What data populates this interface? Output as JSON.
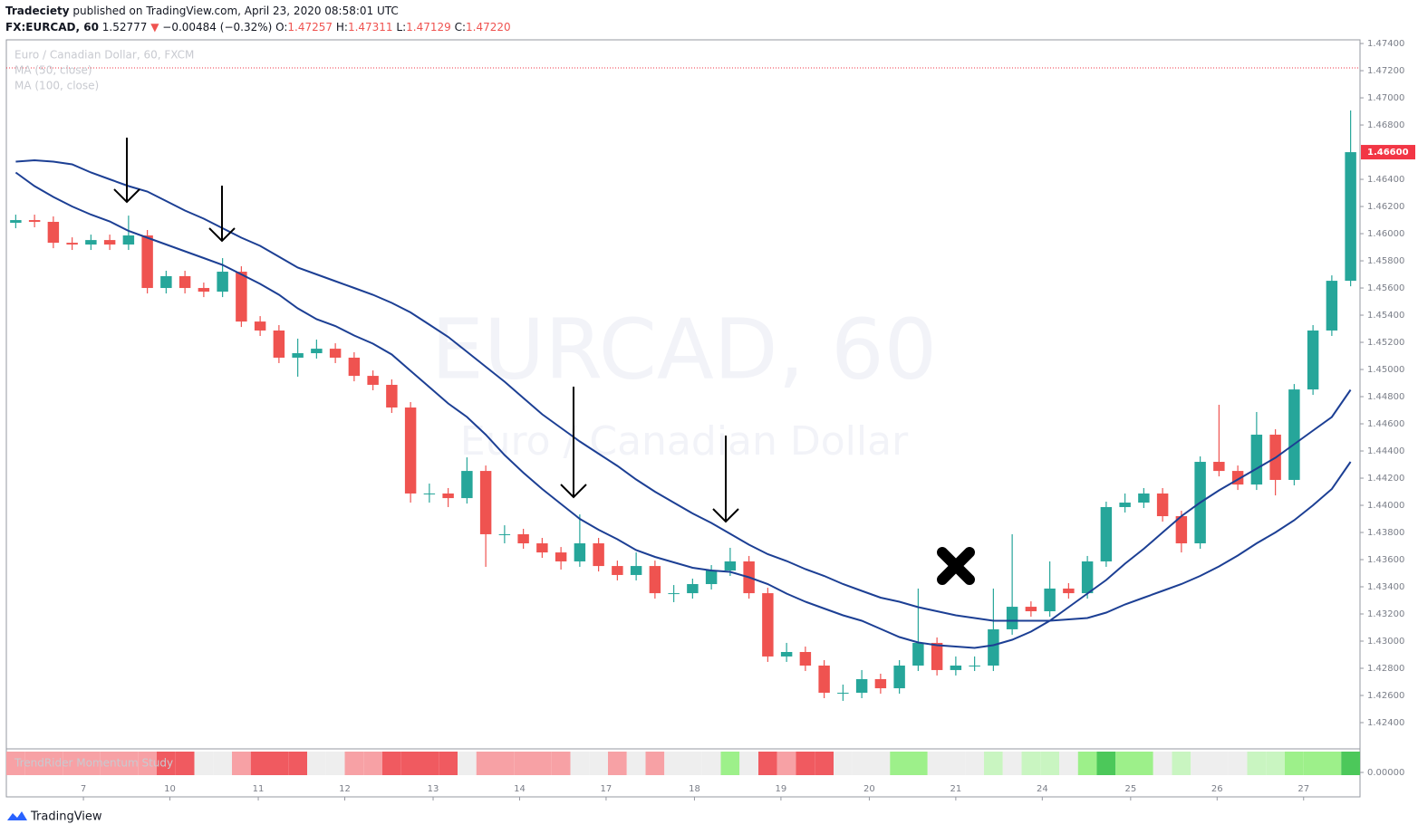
{
  "header": {
    "author": "Tradeciety",
    "published": "published on TradingView.com, April 23, 2020 08:58:01 UTC",
    "symbol": "FX:EURCAD, 60",
    "price": "1.52777",
    "arrow": "▼",
    "change": "−0.00484 (−0.32%)",
    "open_label": "O:",
    "open": "1.47257",
    "high_label": "H:",
    "high": "1.47311",
    "low_label": "L:",
    "low": "1.47129",
    "close_label": "C:",
    "close": "1.47220"
  },
  "legend": {
    "instrument": "Euro / Canadian Dollar, 60, FXCM",
    "ma_fast": "MA (50, close)",
    "ma_slow": "MA (100, close)"
  },
  "watermark": {
    "symbol": "EURCAD, 60",
    "description": "Euro / Canadian Dollar"
  },
  "footer": {
    "brand": "TradingView"
  },
  "chart_data": {
    "type": "candlestick",
    "up_color": "#26a69a",
    "down_color": "#ef5350",
    "grid": false,
    "xlim": [
      -0.5,
      71.5
    ],
    "xticks": [
      {
        "value": 3.6,
        "label": "7"
      },
      {
        "value": 8.2,
        "label": "10"
      },
      {
        "value": 12.9,
        "label": "11"
      },
      {
        "value": 17.5,
        "label": "12"
      },
      {
        "value": 22.2,
        "label": "13"
      },
      {
        "value": 26.8,
        "label": "14"
      },
      {
        "value": 31.4,
        "label": "17"
      },
      {
        "value": 36.1,
        "label": "18"
      },
      {
        "value": 40.7,
        "label": "19"
      },
      {
        "value": 45.4,
        "label": "20"
      },
      {
        "value": 50,
        "label": "21"
      },
      {
        "value": 54.6,
        "label": "24"
      },
      {
        "value": 59.3,
        "label": "25"
      },
      {
        "value": 63.9,
        "label": "26"
      },
      {
        "value": 68.5,
        "label": "27"
      }
    ],
    "ylim": [
      1.4222,
      1.47427
    ],
    "yticks": [
      {
        "value": 1.474,
        "label": "1.47400"
      },
      {
        "value": 1.472,
        "label": "1.47200"
      },
      {
        "value": 1.47,
        "label": "1.47000"
      },
      {
        "value": 1.468,
        "label": "1.46800"
      },
      {
        "value": 1.464,
        "label": "1.46400"
      },
      {
        "value": 1.462,
        "label": "1.46200"
      },
      {
        "value": 1.46,
        "label": "1.46000"
      },
      {
        "value": 1.458,
        "label": "1.45800"
      },
      {
        "value": 1.456,
        "label": "1.45600"
      },
      {
        "value": 1.454,
        "label": "1.45400"
      },
      {
        "value": 1.452,
        "label": "1.45200"
      },
      {
        "value": 1.45,
        "label": "1.45000"
      },
      {
        "value": 1.448,
        "label": "1.44800"
      },
      {
        "value": 1.446,
        "label": "1.44600"
      },
      {
        "value": 1.444,
        "label": "1.44400"
      },
      {
        "value": 1.442,
        "label": "1.44200"
      },
      {
        "value": 1.44,
        "label": "1.44000"
      },
      {
        "value": 1.438,
        "label": "1.43800"
      },
      {
        "value": 1.436,
        "label": "1.43600"
      },
      {
        "value": 1.434,
        "label": "1.43400"
      },
      {
        "value": 1.432,
        "label": "1.43200"
      },
      {
        "value": 1.43,
        "label": "1.43000"
      },
      {
        "value": 1.428,
        "label": "1.42800"
      },
      {
        "value": 1.426,
        "label": "1.42600"
      },
      {
        "value": 1.424,
        "label": "1.42400"
      }
    ],
    "last_price": {
      "value": 1.466,
      "label": "1.46600",
      "color": "#f23645"
    },
    "price_line": {
      "value": 1.4722,
      "color": "#f23645"
    },
    "ohlc": [
      [
        1.4608,
        1.4614,
        1.4604,
        1.461
      ],
      [
        1.461,
        1.4614,
        1.46047,
        1.46087
      ],
      [
        1.46087,
        1.46127,
        1.45893,
        1.45933
      ],
      [
        1.45933,
        1.45973,
        1.4588,
        1.4592
      ],
      [
        1.4592,
        1.45993,
        1.4588,
        1.45953
      ],
      [
        1.45953,
        1.45993,
        1.4588,
        1.4592
      ],
      [
        1.4592,
        1.46133,
        1.4588,
        1.45987
      ],
      [
        1.45987,
        1.46027,
        1.4556,
        1.456
      ],
      [
        1.456,
        1.45727,
        1.4556,
        1.45687
      ],
      [
        1.45687,
        1.45727,
        1.4556,
        1.456
      ],
      [
        1.456,
        1.4564,
        1.45533,
        1.45573
      ],
      [
        1.45573,
        1.4582,
        1.45533,
        1.4572
      ],
      [
        1.4572,
        1.4576,
        1.45313,
        1.45353
      ],
      [
        1.45353,
        1.45393,
        1.45247,
        1.45287
      ],
      [
        1.45287,
        1.45327,
        1.45047,
        1.45087
      ],
      [
        1.45087,
        1.45227,
        1.44947,
        1.4512
      ],
      [
        1.4512,
        1.4522,
        1.4508,
        1.45153
      ],
      [
        1.45153,
        1.45193,
        1.45047,
        1.45087
      ],
      [
        1.45087,
        1.45127,
        1.44913,
        1.44953
      ],
      [
        1.44953,
        1.44993,
        1.44847,
        1.44887
      ],
      [
        1.44887,
        1.44927,
        1.4468,
        1.4472
      ],
      [
        1.4472,
        1.4476,
        1.4402,
        1.44087
      ],
      [
        1.44087,
        1.4416,
        1.4402,
        1.44087
      ],
      [
        1.44087,
        1.44127,
        1.43987,
        1.44053
      ],
      [
        1.44053,
        1.44353,
        1.44013,
        1.44253
      ],
      [
        1.44253,
        1.44293,
        1.43547,
        1.43787
      ],
      [
        1.43787,
        1.43853,
        1.4372,
        1.43787
      ],
      [
        1.43787,
        1.43827,
        1.4368,
        1.4372
      ],
      [
        1.4372,
        1.4376,
        1.43613,
        1.43653
      ],
      [
        1.43653,
        1.43693,
        1.43527,
        1.43587
      ],
      [
        1.43587,
        1.43933,
        1.43547,
        1.4372
      ],
      [
        1.4372,
        1.4376,
        1.43513,
        1.43553
      ],
      [
        1.43553,
        1.43593,
        1.43447,
        1.43487
      ],
      [
        1.43487,
        1.43653,
        1.43447,
        1.43553
      ],
      [
        1.43553,
        1.43593,
        1.43313,
        1.43353
      ],
      [
        1.43353,
        1.43413,
        1.43287,
        1.43353
      ],
      [
        1.43353,
        1.4346,
        1.43313,
        1.4342
      ],
      [
        1.4342,
        1.4356,
        1.4338,
        1.4352
      ],
      [
        1.4352,
        1.43687,
        1.4348,
        1.43587
      ],
      [
        1.43587,
        1.43627,
        1.43313,
        1.43353
      ],
      [
        1.43353,
        1.43393,
        1.42847,
        1.42887
      ],
      [
        1.42887,
        1.42987,
        1.42847,
        1.4292
      ],
      [
        1.4292,
        1.4296,
        1.4278,
        1.4282
      ],
      [
        1.4282,
        1.4286,
        1.4258,
        1.4262
      ],
      [
        1.4262,
        1.4268,
        1.4256,
        1.4262
      ],
      [
        1.4262,
        1.42787,
        1.4258,
        1.4272
      ],
      [
        1.4272,
        1.4276,
        1.42613,
        1.42653
      ],
      [
        1.42653,
        1.4286,
        1.42613,
        1.4282
      ],
      [
        1.4282,
        1.43387,
        1.4278,
        1.42987
      ],
      [
        1.42987,
        1.43027,
        1.42747,
        1.42787
      ],
      [
        1.42787,
        1.42887,
        1.42747,
        1.4282
      ],
      [
        1.4282,
        1.42887,
        1.4278,
        1.4282
      ],
      [
        1.4282,
        1.43387,
        1.4278,
        1.43087
      ],
      [
        1.43087,
        1.43787,
        1.43047,
        1.43253
      ],
      [
        1.43253,
        1.43293,
        1.4318,
        1.4322
      ],
      [
        1.4322,
        1.43587,
        1.4318,
        1.43387
      ],
      [
        1.43387,
        1.43427,
        1.43313,
        1.43353
      ],
      [
        1.43353,
        1.43627,
        1.43313,
        1.43587
      ],
      [
        1.43587,
        1.44027,
        1.43547,
        1.43987
      ],
      [
        1.43987,
        1.44087,
        1.43947,
        1.4402
      ],
      [
        1.4402,
        1.44127,
        1.4398,
        1.44087
      ],
      [
        1.44087,
        1.44127,
        1.4388,
        1.4392
      ],
      [
        1.4392,
        1.4396,
        1.43653,
        1.4372
      ],
      [
        1.4372,
        1.4436,
        1.4368,
        1.4432
      ],
      [
        1.4432,
        1.4474,
        1.44213,
        1.44253
      ],
      [
        1.44253,
        1.44293,
        1.44113,
        1.44153
      ],
      [
        1.44153,
        1.44687,
        1.44113,
        1.4452
      ],
      [
        1.4452,
        1.4456,
        1.44073,
        1.44187
      ],
      [
        1.44187,
        1.44893,
        1.44147,
        1.44853
      ],
      [
        1.44853,
        1.45327,
        1.44813,
        1.45287
      ],
      [
        1.45287,
        1.45693,
        1.45247,
        1.45653
      ],
      [
        1.45653,
        1.46907,
        1.45613,
        1.466
      ]
    ],
    "series": [
      {
        "name": "MA (50, close)",
        "color": "#1c3f94",
        "values": [
          1.4645,
          1.4635,
          1.4627,
          1.462,
          1.4614,
          1.4609,
          1.4602,
          1.4597,
          1.4592,
          1.4587,
          1.4582,
          1.4577,
          1.457,
          1.4563,
          1.4555,
          1.4545,
          1.4537,
          1.4532,
          1.4525,
          1.4519,
          1.4511,
          1.4499,
          1.4487,
          1.4475,
          1.4465,
          1.4452,
          1.4437,
          1.4424,
          1.4412,
          1.4401,
          1.439,
          1.4382,
          1.4375,
          1.4367,
          1.4362,
          1.4358,
          1.4354,
          1.4352,
          1.4351,
          1.4347,
          1.4342,
          1.4335,
          1.4329,
          1.4324,
          1.4319,
          1.4315,
          1.4309,
          1.4303,
          1.4299,
          1.4297,
          1.4296,
          1.4295,
          1.4297,
          1.4301,
          1.4307,
          1.4315,
          1.4325,
          1.4335,
          1.4345,
          1.4357,
          1.4368,
          1.438,
          1.4392,
          1.4402,
          1.4411,
          1.4419,
          1.4427,
          1.4435,
          1.4445,
          1.4455,
          1.4465,
          1.4485
        ]
      },
      {
        "name": "MA (100, close)",
        "color": "#1c3f94",
        "values": [
          1.4653,
          1.4654,
          1.4653,
          1.4651,
          1.4645,
          1.464,
          1.4635,
          1.4631,
          1.4624,
          1.4617,
          1.4611,
          1.4604,
          1.4597,
          1.4591,
          1.4583,
          1.4575,
          1.457,
          1.4565,
          1.456,
          1.4555,
          1.4549,
          1.4542,
          1.4533,
          1.4524,
          1.4513,
          1.4502,
          1.4491,
          1.4479,
          1.4467,
          1.4457,
          1.4447,
          1.4438,
          1.4429,
          1.4419,
          1.441,
          1.4402,
          1.4394,
          1.4387,
          1.4379,
          1.4371,
          1.4364,
          1.4359,
          1.4353,
          1.4348,
          1.4342,
          1.4337,
          1.4332,
          1.4329,
          1.4325,
          1.4322,
          1.4319,
          1.4317,
          1.4315,
          1.4315,
          1.4315,
          1.4315,
          1.4316,
          1.4317,
          1.4321,
          1.4327,
          1.4332,
          1.4337,
          1.4342,
          1.4348,
          1.4355,
          1.4363,
          1.4372,
          1.438,
          1.4389,
          1.44,
          1.4412,
          1.4432
        ]
      }
    ],
    "study": {
      "name": "TrendRider Momentum Study",
      "axis_label": {
        "value": 0,
        "label": "0.00000"
      },
      "colors": [
        "#f7a1a5",
        "#f7a1a5",
        "#f7a1a5",
        "#f7a1a5",
        "#f7a1a5",
        "#f7a1a5",
        "#f7a1a5",
        "#f7a1a5",
        "#f05a60",
        "#f05a60",
        "#eeeeee",
        "#eeeeee",
        "#f7a1a5",
        "#f05a60",
        "#f05a60",
        "#f05a60",
        "#eeeeee",
        "#eeeeee",
        "#f7a1a5",
        "#f7a1a5",
        "#f05a60",
        "#f05a60",
        "#f05a60",
        "#f05a60",
        "#eeeeee",
        "#f7a1a5",
        "#f7a1a5",
        "#f7a1a5",
        "#f7a1a5",
        "#f7a1a5",
        "#eeeeee",
        "#eeeeee",
        "#f7a1a5",
        "#eeeeee",
        "#f7a1a5",
        "#eeeeee",
        "#eeeeee",
        "#eeeeee",
        "#9df08a",
        "#eeeeee",
        "#f05a60",
        "#f7a1a5",
        "#f05a60",
        "#f05a60",
        "#eeeeee",
        "#eeeeee",
        "#eeeeee",
        "#9df08a",
        "#9df08a",
        "#eeeeee",
        "#eeeeee",
        "#eeeeee",
        "#c9f5c1",
        "#eeeeee",
        "#c9f5c1",
        "#c9f5c1",
        "#eeeeee",
        "#9df08a",
        "#4cc85a",
        "#9df08a",
        "#9df08a",
        "#eeeeee",
        "#c9f5c1",
        "#eeeeee",
        "#eeeeee",
        "#eeeeee",
        "#c9f5c1",
        "#c9f5c1",
        "#9df08a",
        "#9df08a",
        "#9df08a",
        "#4cc85a"
      ]
    }
  }
}
